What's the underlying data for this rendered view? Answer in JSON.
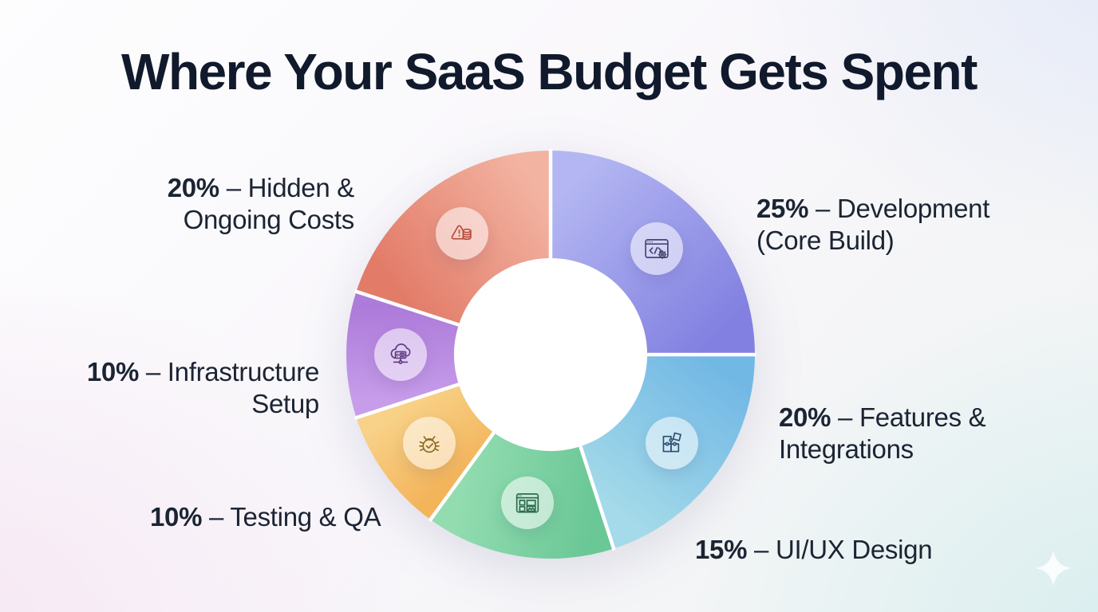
{
  "title": "Where Your SaaS Budget Gets Spent",
  "chart_data": {
    "type": "pie",
    "subtype": "donut",
    "title": "Where Your SaaS Budget Gets Spent",
    "direction": "clockwise",
    "start_angle_deg": 0,
    "inner_radius_ratio": 0.47,
    "unit": "percent of budget",
    "segments": [
      {
        "label": "Development (Core Build)",
        "value": 25,
        "color_start": "#b3b6f2",
        "color_end": "#8280e1",
        "icon": "code-window-icon"
      },
      {
        "label": "Features & Integrations",
        "value": 20,
        "color_start": "#72b8e5",
        "color_end": "#a4dae9",
        "icon": "puzzle-icon"
      },
      {
        "label": "UI/UX Design",
        "value": 15,
        "color_start": "#6ac796",
        "color_end": "#92dcb0",
        "icon": "wireframe-window-icon"
      },
      {
        "label": "Testing & QA",
        "value": 10,
        "color_start": "#f3b45a",
        "color_end": "#f8d289",
        "icon": "bug-check-icon"
      },
      {
        "label": "Infrastructure Setup",
        "value": 10,
        "color_start": "#c79dea",
        "color_end": "#ad7bd9",
        "icon": "cloud-server-icon"
      },
      {
        "label": "Hidden & Ongoing Costs",
        "value": 20,
        "color_start": "#e27b68",
        "color_end": "#f3b3a1",
        "icon": "alert-cost-icon"
      }
    ]
  },
  "labels": {
    "development": {
      "pct": "25%",
      "rest": " – Development",
      "line2": "(Core Build)"
    },
    "features": {
      "pct": "20%",
      "rest": " – Features &",
      "line2": "Integrations"
    },
    "uiux": {
      "pct": "15%",
      "rest": " – UI/UX Design"
    },
    "testing": {
      "pct": "10%",
      "rest": " – Testing & QA"
    },
    "infrastructure": {
      "pct": "10%",
      "rest": " – Infrastructure",
      "line2": "Setup"
    },
    "hidden": {
      "pct": "20%",
      "rest": " – Hidden &",
      "line2": "Ongoing Costs"
    }
  },
  "text_color": "#1b2433",
  "title_color": "#101a2c"
}
